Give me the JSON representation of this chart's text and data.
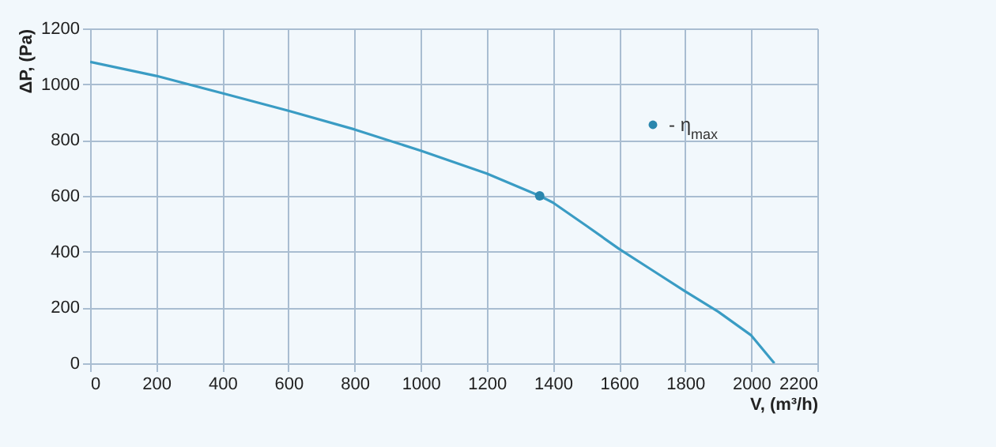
{
  "chart_data": {
    "type": "line",
    "xlabel": "V, (m³/h)",
    "ylabel": "ΔP, (Pa)",
    "xlim": [
      0,
      2200
    ],
    "xticks": [
      0,
      200,
      400,
      600,
      800,
      1000,
      1200,
      1400,
      1600,
      1800,
      2000,
      2200
    ],
    "ylim": [
      0,
      1200
    ],
    "yticks": [
      0,
      200,
      400,
      600,
      800,
      1000,
      1200
    ],
    "grid": true,
    "legend": "top right",
    "series": [
      {
        "color": "#3a9cc4",
        "x": [
          0,
          200,
          400,
          600,
          800,
          1000,
          1200,
          1360,
          1400,
          1500,
          1600,
          1700,
          1800,
          1900,
          2000,
          2070
        ],
        "values": [
          1080,
          1030,
          968,
          905,
          838,
          762,
          680,
          600,
          576,
          494,
          410,
          334,
          258,
          185,
          100,
          0
        ]
      },
      {
        "type": "scatter",
        "name": "- η$_{max}$",
        "color": "#2a86ad",
        "marker": "circle",
        "x": [
          1360
        ],
        "values": [
          600
        ]
      }
    ]
  }
}
